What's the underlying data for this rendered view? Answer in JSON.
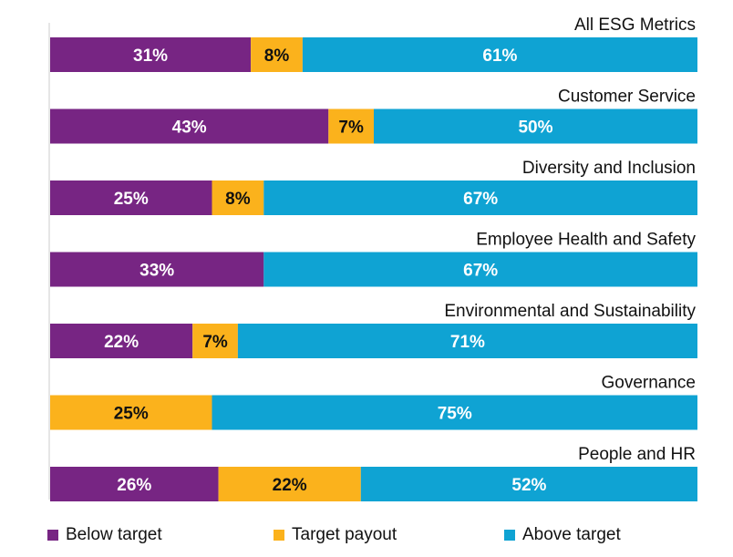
{
  "chart_data": {
    "type": "bar",
    "orientation": "horizontal",
    "stacked": true,
    "categories": [
      "All ESG Metrics",
      "Customer Service",
      "Diversity and Inclusion",
      "Employee Health and Safety",
      "Environmental and Sustainability",
      "Governance",
      "People and HR"
    ],
    "series": [
      {
        "name": "Below target",
        "color": "#772583",
        "values": [
          31,
          43,
          25,
          33,
          22,
          0,
          26
        ]
      },
      {
        "name": "Target payout",
        "color": "#FBB21C",
        "values": [
          8,
          7,
          8,
          0,
          7,
          25,
          22
        ]
      },
      {
        "name": "Above target",
        "color": "#0FA3D3",
        "values": [
          61,
          50,
          67,
          67,
          71,
          75,
          52
        ]
      }
    ],
    "value_format": "{v}%",
    "xlim": [
      0,
      100
    ],
    "grid": false,
    "legend_position": "bottom"
  }
}
